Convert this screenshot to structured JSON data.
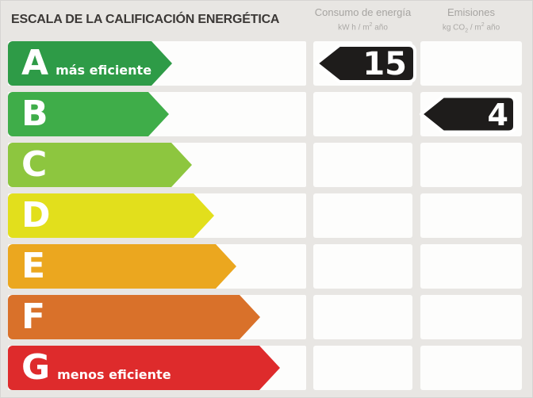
{
  "title": "ESCALA DE LA CALIFICACIÓN ENERGÉTICA",
  "columns": {
    "consumo": {
      "label": "Consumo de energía",
      "units": {
        "pre": "kW h / m",
        "sup": "2",
        "post": " año"
      }
    },
    "emisiones": {
      "label": "Emisiones",
      "units": {
        "pre": "kg CO",
        "sub": "2",
        "mid": " / m",
        "sup": "2",
        "post": " año"
      }
    }
  },
  "scale": {
    "value_arrow_color": "#1E1C1B",
    "value_arrow_border": "#FFFFFF",
    "rows": [
      {
        "letter": "A",
        "label": "más eficiente",
        "color": "#2E9B47",
        "arrow_width": 172,
        "consumo_value": "15",
        "emisiones_value": null
      },
      {
        "letter": "B",
        "label": null,
        "color": "#3FAD49",
        "arrow_width": 203,
        "consumo_value": null,
        "emisiones_value": "4"
      },
      {
        "letter": "C",
        "label": null,
        "color": "#8DC63F",
        "arrow_width": 232,
        "consumo_value": null,
        "emisiones_value": null
      },
      {
        "letter": "D",
        "label": null,
        "color": "#E2DF1C",
        "arrow_width": 260,
        "consumo_value": null,
        "emisiones_value": null
      },
      {
        "letter": "E",
        "label": null,
        "color": "#EBA71F",
        "arrow_width": 288,
        "consumo_value": null,
        "emisiones_value": null
      },
      {
        "letter": "F",
        "label": null,
        "color": "#D9712A",
        "arrow_width": 318,
        "consumo_value": null,
        "emisiones_value": null
      },
      {
        "letter": "G",
        "label": "menos eficiente",
        "color": "#DE2B2C",
        "arrow_width": 343,
        "consumo_value": null,
        "emisiones_value": null
      }
    ]
  },
  "chart_data": {
    "type": "bar",
    "title": "ESCALA DE LA CALIFICACIÓN ENERGÉTICA",
    "categories": [
      "A",
      "B",
      "C",
      "D",
      "E",
      "F",
      "G"
    ],
    "values": [
      172,
      203,
      232,
      260,
      288,
      318,
      343
    ],
    "xlabel": "",
    "ylabel": "",
    "legend": [
      "Consumo de energía (kW h / m² año)",
      "Emisiones (kg CO₂ / m² año)"
    ],
    "annotations": [
      {
        "metric": "Consumo de energía",
        "units": "kW h / m² año",
        "value": 15,
        "rating": "A"
      },
      {
        "metric": "Emisiones",
        "units": "kg CO₂ / m² año",
        "value": 4,
        "rating": "B"
      }
    ]
  }
}
